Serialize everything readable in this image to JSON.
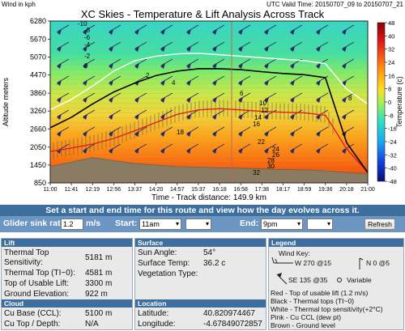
{
  "header": {
    "units": "Wind in kph",
    "title": "XC Skies - Temperature & Lift Analysis Across Track",
    "valid_time": "UTC Valid Time: 20150707_09 to 20150707_21"
  },
  "chart_data": {
    "type": "heatmap",
    "title": "XC Skies - Temperature & Lift Analysis Across Track",
    "xlabel": "Time - Track distance: 149.9 km",
    "ylabel": "Altitude meters",
    "colorbar_label": "Temperature (c)",
    "x_ticks": [
      "11:00",
      "11:41",
      "12:19",
      "12:56",
      "13:37",
      "14:20",
      "14:57",
      "15:37",
      "16:18",
      "16:58",
      "17:38",
      "18:17",
      "18:59",
      "19:36",
      "20:18",
      "21:00"
    ],
    "y_ticks": [
      "850",
      "1450",
      "2050",
      "2660",
      "3260",
      "3860",
      "4470",
      "5070",
      "5670",
      "6280"
    ],
    "ylim": [
      850,
      6280
    ],
    "colorbar_ticks": [
      "48",
      "40",
      "32",
      "24",
      "16",
      "8",
      "0",
      "-8",
      "-16",
      "-24",
      "-32",
      "-40",
      "-48"
    ],
    "colorbar_range": [
      -48,
      48
    ],
    "series": [
      {
        "name": "Top of usable lift",
        "color": "#e02020",
        "values": [
          1900,
          2020,
          2150,
          2340,
          2600,
          2880,
          3150,
          3300,
          3340,
          3300,
          3250,
          3220,
          3200,
          3120,
          2000,
          1200
        ]
      },
      {
        "name": "Thermal tops",
        "color": "#000000",
        "values": [
          2700,
          3050,
          3500,
          3900,
          4200,
          4450,
          4600,
          4680,
          4680,
          4650,
          4580,
          4520,
          4480,
          4380,
          2200,
          1200
        ]
      },
      {
        "name": "Thermal top sensitivity",
        "color": "#ffffff",
        "values": [
          3300,
          3650,
          4100,
          4600,
          4950,
          5100,
          5180,
          5200,
          5150,
          5100,
          5050,
          5000,
          4950,
          4850,
          4000,
          3500
        ]
      },
      {
        "name": "Ground level",
        "color": "#7a6a50",
        "values": [
          1400,
          1550,
          1700,
          1600,
          1500,
          1450,
          1400,
          1380,
          1360,
          1340,
          1320,
          1300,
          1290,
          1260,
          1200,
          1150
        ]
      }
    ],
    "isotherm_labels": [
      "-10",
      "-8",
      "-6",
      "-4",
      "-2",
      "0",
      "2",
      "4",
      "6",
      "8",
      "10",
      "12",
      "14",
      "16",
      "18",
      "22",
      "24",
      "26",
      "28",
      "30",
      "32"
    ]
  },
  "controls": {
    "banner": "Set a start and end time for this route and view how the day evolves across it.",
    "sink_label": "Glider sink rate:",
    "sink_value": "1.2",
    "sink_unit": "m/s",
    "start_label": "Start:",
    "start_value": "11am",
    "end_label": "End:",
    "end_value": "9pm",
    "refresh_label": "Refresh"
  },
  "lift": {
    "heading": "Lift",
    "thermal_sens_label": "Thermal Top Sensitivity:",
    "thermal_sens_value": "5181 m",
    "thermal_top_label": "Thermal Top (TI~0):",
    "thermal_top_value": "4581 m",
    "usable_label": "Top of Usable Lift:",
    "usable_value": "3300 m",
    "ground_label": "Ground Elevation:",
    "ground_value": "922 m"
  },
  "cloud": {
    "heading": "Cloud",
    "base_label": "Cu Base (CCL):",
    "base_value": "5100 m",
    "top_label": "Cu Top / Depth:",
    "top_value": "N/A"
  },
  "surface": {
    "heading": "Surface",
    "sun_label": "Sun Angle:",
    "sun_value": "54°",
    "temp_label": "Surface Temp:",
    "temp_value": "36.2 c",
    "veg_label": "Vegetation Type:",
    "veg_value": ""
  },
  "location": {
    "heading": "Location",
    "lat_label": "Latitude:",
    "lat_value": "40.820974467",
    "lon_label": "Longitude:",
    "lon_value": "-4.67849072857"
  },
  "legend": {
    "heading": "Legend",
    "wind_key": "Wind Key:",
    "w270": "W 270 @15",
    "n0": "N 0 @5",
    "se135": "SE 135 @35",
    "variable": "Variable",
    "red": "Red - Top of usable lift (1.2 m/s)",
    "black": "Black - Thermal tops (TI~0)",
    "white": "White - Thermal top sensitivity(+2°C)",
    "pink": "Pink - Cu CCL (dew pt)",
    "brown": "Brown - Ground level"
  },
  "colors": {
    "header_blue": "#3c6e9e",
    "row_blue": "#6b95c2",
    "panel_bg": "#e9e9e9"
  }
}
